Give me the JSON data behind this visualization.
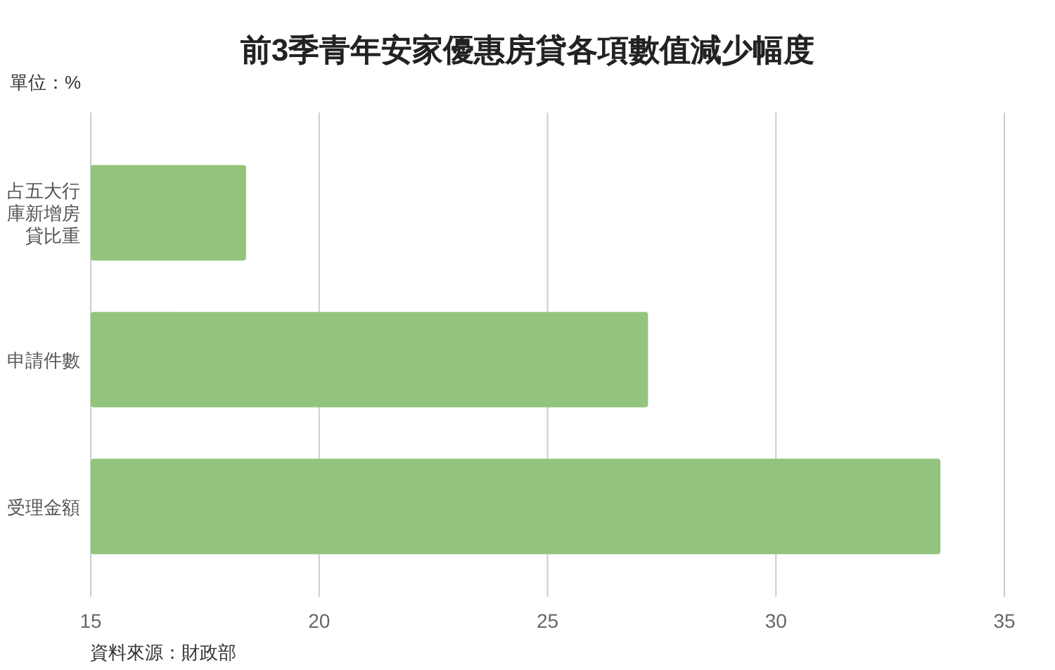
{
  "chart_data": {
    "type": "bar",
    "orientation": "horizontal",
    "title": "前3季青年安家優惠房貸各項數值減少幅度",
    "categories": [
      "占五大行庫新增房貸比重",
      "申請件數",
      "受理金額"
    ],
    "values": [
      18.4,
      27.2,
      33.6
    ],
    "color": "#93c47d",
    "xlim": [
      15,
      35
    ],
    "xticks": [
      15,
      20,
      25,
      30,
      35
    ],
    "grid": "x",
    "annotations": [
      "單位：%",
      "資料來源：財政部"
    ]
  }
}
